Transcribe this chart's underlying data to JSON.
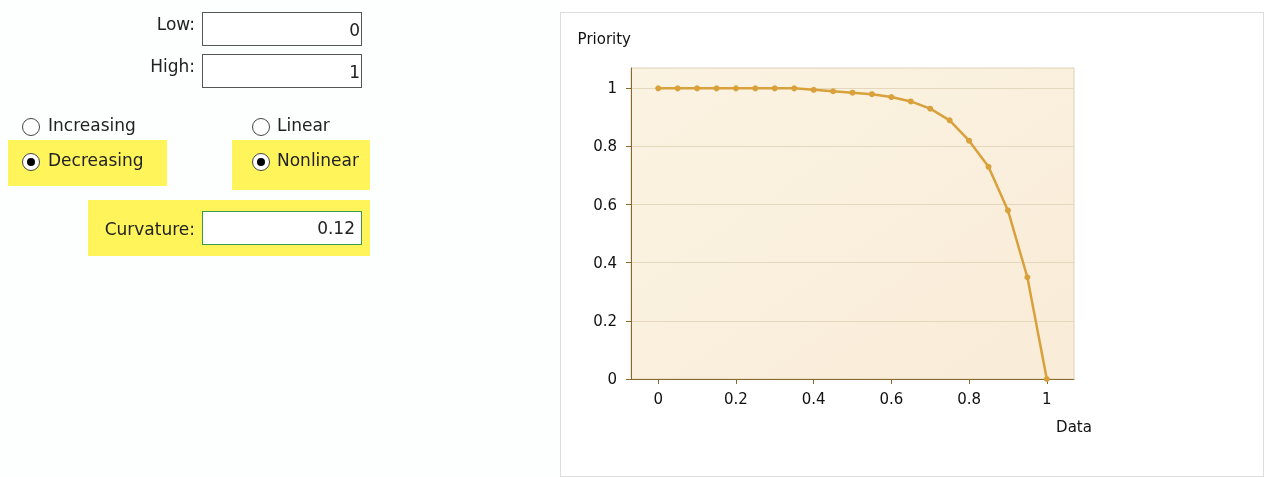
{
  "chart_data": [
    {
      "type": "other",
      "annotations": [
        "Low:",
        "0",
        "High:",
        "1",
        "Increasing",
        "Linear",
        "Decreasing",
        "Nonlinear",
        "Curvature:",
        "0.12"
      ]
    },
    {
      "type": "line",
      "ylabel": "Priority",
      "xlabel": "Data",
      "x": [
        0,
        0.05,
        0.1,
        0.15,
        0.2,
        0.25,
        0.3,
        0.35,
        0.4,
        0.45,
        0.5,
        0.55,
        0.6,
        0.65,
        0.7,
        0.75,
        0.8,
        0.85,
        0.9,
        0.95,
        1
      ],
      "series": [
        {
          "color": "#d9a13b",
          "values": [
            1,
            1,
            1,
            1,
            1,
            1,
            1,
            1,
            0.995,
            0.99,
            0.985,
            0.98,
            0.97,
            0.955,
            0.93,
            0.89,
            0.82,
            0.73,
            0.58,
            0.35,
            0
          ]
        }
      ],
      "xlim": [
        -0.07,
        1.07
      ],
      "xticks": [
        0,
        0.2,
        0.4,
        0.6,
        0.8,
        1
      ],
      "ylim": [
        0,
        1.07
      ],
      "yticks": [
        0,
        0.2,
        0.4,
        0.6,
        0.8,
        1
      ],
      "grid": "y",
      "marker": "circle",
      "line_style": "solid"
    }
  ]
}
